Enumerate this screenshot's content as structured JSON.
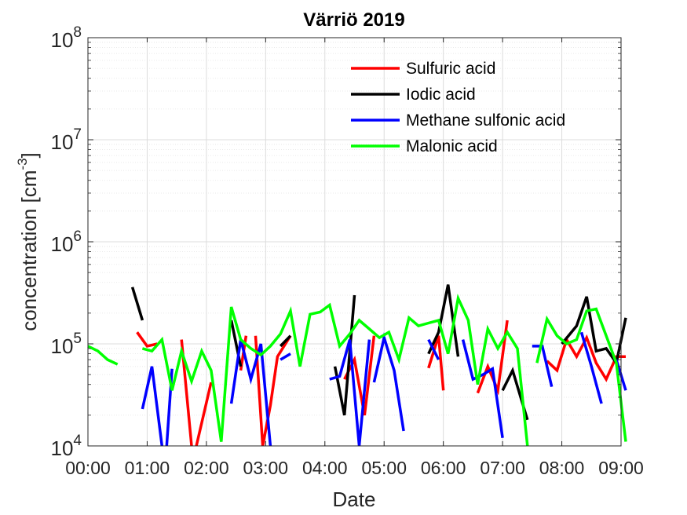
{
  "chart_data": {
    "type": "line",
    "title": "Värriö 2019",
    "xlabel": "Date",
    "ylabel_base": "concentration [cm",
    "ylabel_exp": "-3",
    "ylabel_close": "]",
    "yscale": "log",
    "ylim": [
      10000,
      100000000
    ],
    "xlim": [
      0,
      9
    ],
    "x_ticks": [
      {
        "value": 0,
        "label": "00:00"
      },
      {
        "value": 1,
        "label": "01:00"
      },
      {
        "value": 2,
        "label": "02:00"
      },
      {
        "value": 3,
        "label": "03:00"
      },
      {
        "value": 4,
        "label": "04:00"
      },
      {
        "value": 5,
        "label": "05:00"
      },
      {
        "value": 6,
        "label": "06:00"
      },
      {
        "value": 7,
        "label": "07:00"
      },
      {
        "value": 8,
        "label": "08:00"
      },
      {
        "value": 9,
        "label": "09:00"
      }
    ],
    "y_ticks": [
      {
        "value": 10000,
        "base": "10",
        "exp": "4"
      },
      {
        "value": 100000,
        "base": "10",
        "exp": "5"
      },
      {
        "value": 1000000,
        "base": "10",
        "exp": "6"
      },
      {
        "value": 10000000,
        "base": "10",
        "exp": "7"
      },
      {
        "value": 100000000,
        "base": "10",
        "exp": "8"
      }
    ],
    "grid": true,
    "legend_position": "top-right",
    "series": [
      {
        "name": "Sulfuric acid",
        "color": "#ff0000",
        "segments": [
          [
            [
              0.83,
              130000
            ],
            [
              1.0,
              95000
            ],
            [
              1.17,
              100000
            ]
          ],
          [
            [
              1.58,
              110000
            ],
            [
              1.75,
              10000
            ]
          ],
          [
            [
              1.83,
              10000
            ],
            [
              2.08,
              42000
            ]
          ],
          [
            [
              2.58,
              55000
            ],
            [
              2.67,
              120000
            ]
          ],
          [
            [
              2.83,
              120000
            ],
            [
              2.95,
              10000
            ],
            [
              3.08,
              25000
            ],
            [
              3.2,
              75000
            ],
            [
              3.42,
              120000
            ]
          ],
          [
            [
              4.33,
              45000
            ],
            [
              4.5,
              70000
            ],
            [
              4.67,
              20000
            ],
            [
              4.83,
              120000
            ]
          ],
          [
            [
              5.75,
              58000
            ],
            [
              5.92,
              120000
            ],
            [
              6.0,
              35000
            ]
          ],
          [
            [
              6.58,
              33000
            ],
            [
              6.75,
              60000
            ],
            [
              6.92,
              35000
            ],
            [
              7.08,
              170000
            ]
          ],
          [
            [
              7.75,
              68000
            ],
            [
              7.92,
              55000
            ],
            [
              8.08,
              110000
            ],
            [
              8.25,
              75000
            ],
            [
              8.42,
              115000
            ],
            [
              8.58,
              65000
            ],
            [
              8.75,
              45000
            ],
            [
              8.92,
              75000
            ],
            [
              9.08,
              75000
            ]
          ]
        ]
      },
      {
        "name": "Iodic acid",
        "color": "#000000",
        "segments": [
          [
            [
              0.75,
              360000
            ],
            [
              0.92,
              170000
            ]
          ],
          [
            [
              2.42,
              170000
            ],
            [
              2.58,
              60000
            ]
          ],
          [
            [
              3.25,
              95000
            ],
            [
              3.42,
              120000
            ]
          ],
          [
            [
              4.17,
              60000
            ],
            [
              4.33,
              20000
            ],
            [
              4.5,
              300000
            ]
          ],
          [
            [
              5.75,
              80000
            ],
            [
              5.92,
              130000
            ],
            [
              6.08,
              380000
            ],
            [
              6.25,
              75000
            ]
          ],
          [
            [
              7.0,
              35000
            ],
            [
              7.17,
              55000
            ],
            [
              7.42,
              18000
            ]
          ],
          [
            [
              8.0,
              100000
            ],
            [
              8.25,
              150000
            ],
            [
              8.42,
              290000
            ],
            [
              8.58,
              85000
            ],
            [
              8.75,
              90000
            ],
            [
              8.92,
              65000
            ],
            [
              9.08,
              180000
            ]
          ]
        ]
      },
      {
        "name": "Methane sulfonic acid",
        "color": "#0000ff",
        "segments": [
          [
            [
              0.92,
              23000
            ],
            [
              1.08,
              60000
            ],
            [
              1.25,
              10000
            ]
          ],
          [
            [
              1.33,
              10000
            ],
            [
              1.42,
              57000
            ]
          ],
          [
            [
              2.42,
              26000
            ],
            [
              2.58,
              110000
            ],
            [
              2.75,
              45000
            ],
            [
              2.92,
              100000
            ],
            [
              3.08,
              10000
            ]
          ],
          [
            [
              3.25,
              70000
            ],
            [
              3.42,
              80000
            ]
          ],
          [
            [
              4.08,
              45000
            ],
            [
              4.25,
              48000
            ],
            [
              4.42,
              110000
            ],
            [
              4.58,
              10000
            ],
            [
              4.75,
              110000
            ]
          ],
          [
            [
              4.83,
              42000
            ],
            [
              5.0,
              115000
            ],
            [
              5.17,
              55000
            ],
            [
              5.33,
              14000
            ]
          ],
          [
            [
              5.75,
              110000
            ],
            [
              5.92,
              70000
            ]
          ],
          [
            [
              6.33,
              110000
            ],
            [
              6.5,
              45000
            ],
            [
              6.67,
              50000
            ],
            [
              6.83,
              57000
            ],
            [
              7.0,
              12000
            ]
          ],
          [
            [
              7.5,
              95000
            ],
            [
              7.67,
              95000
            ],
            [
              7.83,
              38000
            ]
          ],
          [
            [
              8.33,
              130000
            ],
            [
              8.5,
              60000
            ],
            [
              8.67,
              26000
            ]
          ],
          [
            [
              8.92,
              70000
            ],
            [
              9.08,
              35000
            ]
          ]
        ]
      },
      {
        "name": "Malonic acid",
        "color": "#00ff00",
        "segments": [
          [
            [
              0.0,
              95000
            ],
            [
              0.17,
              85000
            ],
            [
              0.33,
              70000
            ],
            [
              0.5,
              63000
            ]
          ],
          [
            [
              0.92,
              90000
            ],
            [
              1.08,
              85000
            ],
            [
              1.25,
              110000
            ],
            [
              1.42,
              35000
            ],
            [
              1.58,
              85000
            ],
            [
              1.75,
              43000
            ],
            [
              1.92,
              85000
            ],
            [
              2.08,
              55000
            ],
            [
              2.25,
              11000
            ],
            [
              2.42,
              230000
            ],
            [
              2.58,
              110000
            ],
            [
              2.75,
              90000
            ],
            [
              2.92,
              78000
            ],
            [
              3.08,
              95000
            ],
            [
              3.25,
              125000
            ],
            [
              3.42,
              210000
            ],
            [
              3.58,
              60000
            ],
            [
              3.75,
              195000
            ],
            [
              3.92,
              205000
            ],
            [
              4.08,
              240000
            ],
            [
              4.25,
              95000
            ],
            [
              4.42,
              125000
            ],
            [
              4.58,
              170000
            ],
            [
              4.75,
              140000
            ],
            [
              4.92,
              115000
            ],
            [
              5.08,
              130000
            ],
            [
              5.25,
              70000
            ],
            [
              5.42,
              180000
            ],
            [
              5.58,
              150000
            ],
            [
              5.75,
              160000
            ],
            [
              5.92,
              170000
            ],
            [
              6.08,
              80000
            ],
            [
              6.25,
              280000
            ],
            [
              6.42,
              170000
            ],
            [
              6.58,
              40000
            ],
            [
              6.75,
              140000
            ],
            [
              6.92,
              90000
            ],
            [
              7.08,
              130000
            ],
            [
              7.25,
              90000
            ],
            [
              7.42,
              10000
            ]
          ],
          [
            [
              7.58,
              65000
            ],
            [
              7.75,
              175000
            ],
            [
              7.92,
              120000
            ],
            [
              8.08,
              100000
            ],
            [
              8.25,
              110000
            ],
            [
              8.42,
              210000
            ],
            [
              8.58,
              220000
            ],
            [
              8.75,
              120000
            ],
            [
              8.92,
              65000
            ],
            [
              9.08,
              11000
            ]
          ]
        ]
      }
    ]
  }
}
